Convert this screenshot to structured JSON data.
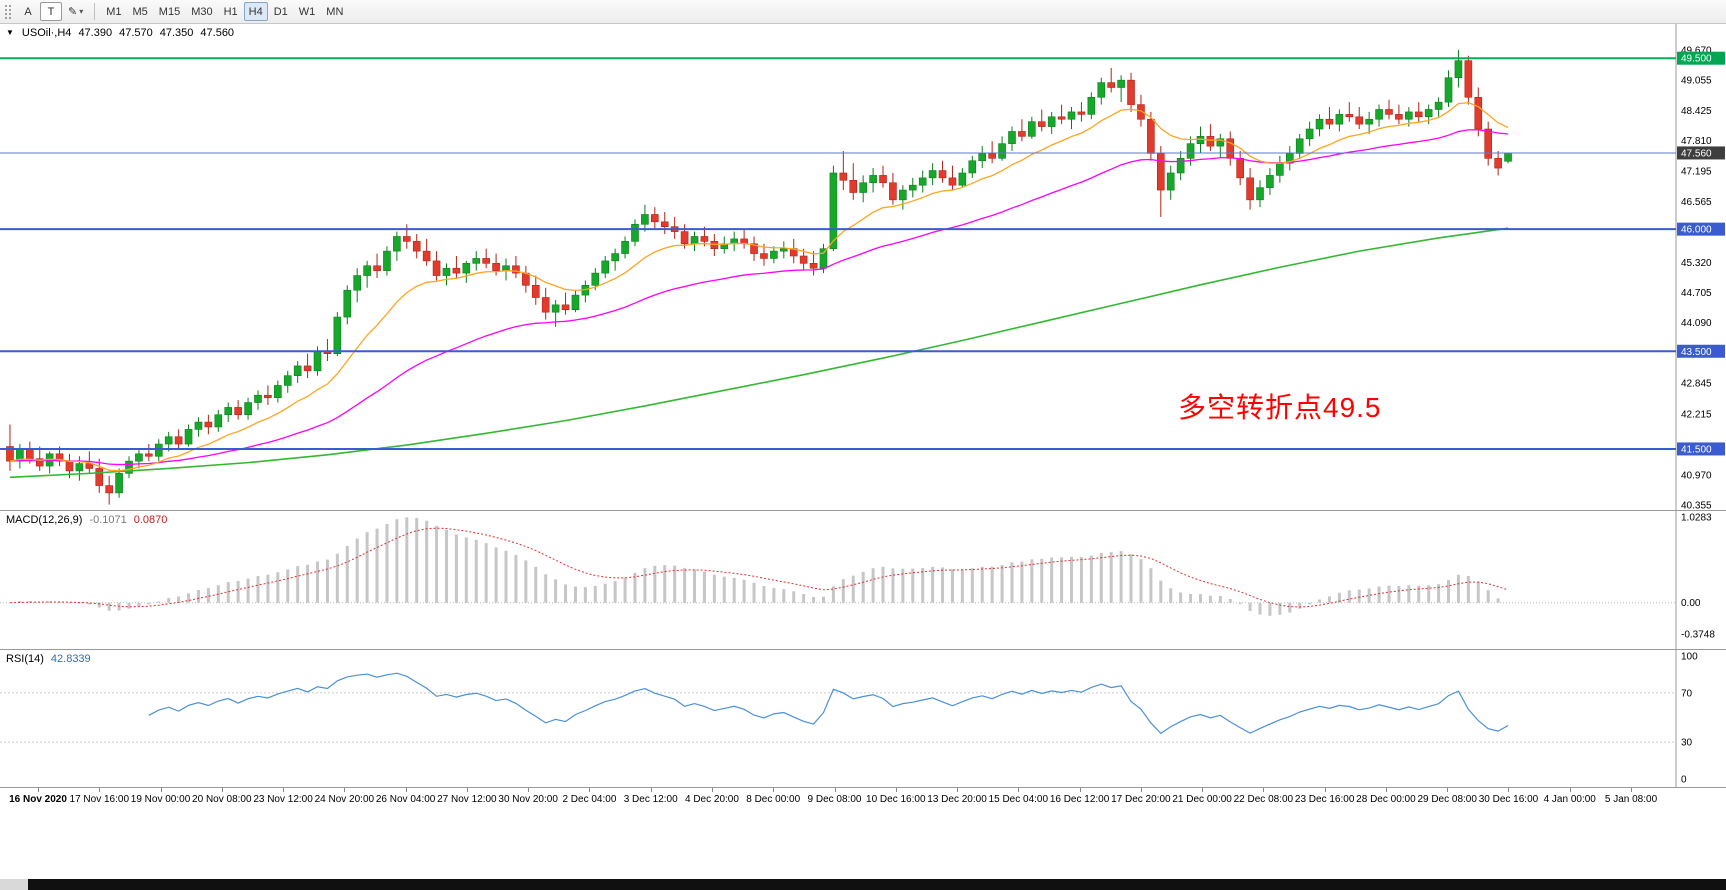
{
  "toolbar": {
    "left_tools": [
      {
        "name": "drag-handle",
        "glyph": ""
      },
      {
        "name": "annotate",
        "label": "A"
      },
      {
        "name": "text",
        "label": "T"
      },
      {
        "name": "draw",
        "glyph": "✎",
        "caret": "▾"
      }
    ],
    "timeframes": [
      "M1",
      "M5",
      "M15",
      "M30",
      "H1",
      "H4",
      "D1",
      "W1",
      "MN"
    ],
    "active_timeframe": "H4"
  },
  "main_header": {
    "expander": "▼",
    "symbol": "USOil·,H4",
    "open": "47.390",
    "high": "47.570",
    "low": "47.350",
    "close": "47.560"
  },
  "annotation": {
    "text": "多空转折点49.5",
    "color": "#ff0000"
  },
  "colors": {
    "up": "#17a82b",
    "up_stroke": "#0c7d1d",
    "down": "#e23b2e",
    "down_stroke": "#b02317",
    "panel_border": "#9a9a9a",
    "axis_text": "#000000"
  },
  "chart_data": {
    "type": "candlestick",
    "symbol": "USOil",
    "timeframe": "H4",
    "price_range": [
      40.25,
      50.2
    ],
    "candles": [
      [
        41.55,
        42,
        41.05,
        41.25
      ],
      [
        41.25,
        41.6,
        41.1,
        41.5
      ],
      [
        41.5,
        41.65,
        41.2,
        41.3
      ],
      [
        41.3,
        41.55,
        41.05,
        41.15
      ],
      [
        41.15,
        41.45,
        41,
        41.4
      ],
      [
        41.4,
        41.55,
        41.15,
        41.25
      ],
      [
        41.25,
        41.4,
        40.9,
        41.05
      ],
      [
        41.05,
        41.35,
        40.85,
        41.2
      ],
      [
        41.2,
        41.45,
        41,
        41.1
      ],
      [
        41.1,
        41.3,
        40.6,
        40.75
      ],
      [
        40.75,
        40.95,
        40.36,
        40.6
      ],
      [
        40.6,
        41.1,
        40.5,
        41
      ],
      [
        41,
        41.35,
        40.9,
        41.25
      ],
      [
        41.25,
        41.5,
        41.1,
        41.4
      ],
      [
        41.4,
        41.6,
        41.25,
        41.35
      ],
      [
        41.35,
        41.7,
        41.25,
        41.6
      ],
      [
        41.6,
        41.85,
        41.45,
        41.75
      ],
      [
        41.75,
        41.9,
        41.5,
        41.6
      ],
      [
        41.6,
        42,
        41.55,
        41.9
      ],
      [
        41.9,
        42.15,
        41.75,
        42.05
      ],
      [
        42.05,
        42.2,
        41.8,
        41.95
      ],
      [
        41.95,
        42.3,
        41.85,
        42.2
      ],
      [
        42.2,
        42.45,
        42.05,
        42.35
      ],
      [
        42.35,
        42.5,
        42.1,
        42.2
      ],
      [
        42.2,
        42.55,
        42.1,
        42.45
      ],
      [
        42.45,
        42.7,
        42.3,
        42.6
      ],
      [
        42.6,
        42.8,
        42.4,
        42.55
      ],
      [
        42.55,
        42.9,
        42.45,
        42.8
      ],
      [
        42.8,
        43.1,
        42.65,
        43
      ],
      [
        43,
        43.3,
        42.85,
        43.2
      ],
      [
        43.2,
        43.45,
        42.95,
        43.1
      ],
      [
        43.1,
        43.6,
        43,
        43.5
      ],
      [
        43.5,
        43.75,
        43.3,
        43.45
      ],
      [
        43.45,
        44.3,
        43.4,
        44.2
      ],
      [
        44.2,
        44.85,
        44.05,
        44.75
      ],
      [
        44.75,
        45.2,
        44.5,
        45.05
      ],
      [
        45.05,
        45.35,
        44.8,
        45.25
      ],
      [
        45.25,
        45.5,
        45,
        45.15
      ],
      [
        45.15,
        45.65,
        45.05,
        45.55
      ],
      [
        45.55,
        45.95,
        45.35,
        45.85
      ],
      [
        45.85,
        46.1,
        45.6,
        45.75
      ],
      [
        45.75,
        45.9,
        45.4,
        45.55
      ],
      [
        45.55,
        45.8,
        45.25,
        45.35
      ],
      [
        45.35,
        45.55,
        44.95,
        45.05
      ],
      [
        45.05,
        45.3,
        44.85,
        45.2
      ],
      [
        45.2,
        45.45,
        45,
        45.1
      ],
      [
        45.1,
        45.35,
        44.9,
        45.3
      ],
      [
        45.3,
        45.55,
        45.15,
        45.4
      ],
      [
        45.4,
        45.6,
        45.2,
        45.3
      ],
      [
        45.3,
        45.5,
        45.05,
        45.15
      ],
      [
        45.15,
        45.4,
        44.95,
        45.25
      ],
      [
        45.25,
        45.45,
        45,
        45.1
      ],
      [
        45.1,
        45.25,
        44.7,
        44.85
      ],
      [
        44.85,
        45.05,
        44.45,
        44.6
      ],
      [
        44.6,
        44.8,
        44.15,
        44.3
      ],
      [
        44.3,
        44.55,
        44,
        44.45
      ],
      [
        44.45,
        44.7,
        44.25,
        44.35
      ],
      [
        44.35,
        44.75,
        44.3,
        44.65
      ],
      [
        44.65,
        44.95,
        44.5,
        44.85
      ],
      [
        44.85,
        45.2,
        44.75,
        45.1
      ],
      [
        45.1,
        45.45,
        45,
        45.35
      ],
      [
        45.35,
        45.6,
        45.15,
        45.5
      ],
      [
        45.5,
        45.85,
        45.4,
        45.75
      ],
      [
        45.75,
        46.2,
        45.65,
        46.1
      ],
      [
        46.1,
        46.5,
        45.95,
        46.3
      ],
      [
        46.3,
        46.45,
        46,
        46.15
      ],
      [
        46.15,
        46.35,
        45.9,
        46.05
      ],
      [
        46.05,
        46.25,
        45.8,
        45.95
      ],
      [
        45.95,
        46.1,
        45.6,
        45.7
      ],
      [
        45.7,
        45.95,
        45.55,
        45.85
      ],
      [
        45.85,
        46.05,
        45.65,
        45.75
      ],
      [
        45.75,
        45.9,
        45.45,
        45.6
      ],
      [
        45.6,
        45.85,
        45.5,
        45.7
      ],
      [
        45.7,
        45.95,
        45.55,
        45.8
      ],
      [
        45.8,
        46,
        45.6,
        45.7
      ],
      [
        45.7,
        45.85,
        45.35,
        45.5
      ],
      [
        45.5,
        45.7,
        45.25,
        45.4
      ],
      [
        45.4,
        45.65,
        45.3,
        45.55
      ],
      [
        45.55,
        45.75,
        45.4,
        45.6
      ],
      [
        45.6,
        45.8,
        45.3,
        45.45
      ],
      [
        45.45,
        45.6,
        45.15,
        45.3
      ],
      [
        45.3,
        45.55,
        45.05,
        45.2
      ],
      [
        45.2,
        45.7,
        45.1,
        45.6
      ],
      [
        45.6,
        47.3,
        45.55,
        47.15
      ],
      [
        47.15,
        47.6,
        46.8,
        47
      ],
      [
        47,
        47.35,
        46.6,
        46.75
      ],
      [
        46.75,
        47.1,
        46.55,
        46.95
      ],
      [
        46.95,
        47.25,
        46.75,
        47.1
      ],
      [
        47.1,
        47.3,
        46.85,
        46.95
      ],
      [
        46.95,
        47.15,
        46.5,
        46.6
      ],
      [
        46.6,
        46.9,
        46.4,
        46.8
      ],
      [
        46.8,
        47.05,
        46.65,
        46.9
      ],
      [
        46.9,
        47.2,
        46.75,
        47.05
      ],
      [
        47.05,
        47.35,
        46.9,
        47.2
      ],
      [
        47.2,
        47.4,
        46.95,
        47.05
      ],
      [
        47.05,
        47.3,
        46.8,
        46.9
      ],
      [
        46.9,
        47.25,
        46.85,
        47.15
      ],
      [
        47.15,
        47.5,
        47.05,
        47.4
      ],
      [
        47.4,
        47.7,
        47.25,
        47.55
      ],
      [
        47.55,
        47.8,
        47.35,
        47.45
      ],
      [
        47.45,
        47.9,
        47.4,
        47.75
      ],
      [
        47.75,
        48.1,
        47.6,
        48
      ],
      [
        48,
        48.25,
        47.8,
        47.9
      ],
      [
        47.9,
        48.3,
        47.85,
        48.2
      ],
      [
        48.2,
        48.45,
        48,
        48.1
      ],
      [
        48.1,
        48.4,
        47.95,
        48.3
      ],
      [
        48.3,
        48.55,
        48.15,
        48.25
      ],
      [
        48.25,
        48.5,
        48.05,
        48.4
      ],
      [
        48.4,
        48.6,
        48.2,
        48.35
      ],
      [
        48.35,
        48.8,
        48.25,
        48.7
      ],
      [
        48.7,
        49.1,
        48.55,
        49
      ],
      [
        49,
        49.3,
        48.8,
        48.9
      ],
      [
        48.9,
        49.15,
        48.6,
        49.05
      ],
      [
        49.05,
        49.2,
        48.4,
        48.55
      ],
      [
        48.55,
        48.75,
        48.1,
        48.25
      ],
      [
        48.25,
        48.4,
        47.4,
        47.55
      ],
      [
        47.55,
        47.7,
        46.25,
        46.8
      ],
      [
        46.8,
        47.3,
        46.6,
        47.15
      ],
      [
        47.15,
        47.6,
        47,
        47.45
      ],
      [
        47.45,
        47.9,
        47.3,
        47.75
      ],
      [
        47.75,
        48.1,
        47.55,
        47.9
      ],
      [
        47.9,
        48.15,
        47.6,
        47.7
      ],
      [
        47.7,
        47.95,
        47.45,
        47.85
      ],
      [
        47.85,
        48,
        47.3,
        47.45
      ],
      [
        47.45,
        47.6,
        46.9,
        47.05
      ],
      [
        47.05,
        47.25,
        46.4,
        46.6
      ],
      [
        46.6,
        47,
        46.45,
        46.85
      ],
      [
        46.85,
        47.25,
        46.7,
        47.1
      ],
      [
        47.1,
        47.5,
        46.95,
        47.35
      ],
      [
        47.35,
        47.7,
        47.2,
        47.55
      ],
      [
        47.55,
        47.95,
        47.45,
        47.85
      ],
      [
        47.85,
        48.2,
        47.7,
        48.05
      ],
      [
        48.05,
        48.35,
        47.9,
        48.25
      ],
      [
        48.25,
        48.5,
        48.05,
        48.15
      ],
      [
        48.15,
        48.45,
        48,
        48.35
      ],
      [
        48.35,
        48.6,
        48.2,
        48.3
      ],
      [
        48.3,
        48.5,
        48.05,
        48.15
      ],
      [
        48.15,
        48.4,
        47.95,
        48.25
      ],
      [
        48.25,
        48.55,
        48.1,
        48.45
      ],
      [
        48.45,
        48.65,
        48.25,
        48.35
      ],
      [
        48.35,
        48.55,
        48.15,
        48.25
      ],
      [
        48.25,
        48.5,
        48.1,
        48.4
      ],
      [
        48.4,
        48.6,
        48.2,
        48.3
      ],
      [
        48.3,
        48.55,
        48.15,
        48.45
      ],
      [
        48.45,
        48.7,
        48.3,
        48.6
      ],
      [
        48.6,
        49.25,
        48.5,
        49.1
      ],
      [
        49.1,
        49.67,
        48.9,
        49.45
      ],
      [
        49.45,
        49.55,
        48.55,
        48.7
      ],
      [
        48.7,
        48.9,
        47.9,
        48.05
      ],
      [
        48.05,
        48.2,
        47.3,
        47.45
      ],
      [
        47.45,
        47.6,
        47.1,
        47.25
      ],
      [
        47.39,
        47.57,
        47.35,
        47.56
      ]
    ],
    "overlays": {
      "ma_fast": {
        "name": "fast-ma",
        "type": "ema",
        "period": 12,
        "color": "#ffa520"
      },
      "ma_mid": {
        "name": "mid-ma",
        "type": "ema",
        "period": 40,
        "color": "#ff00ff"
      },
      "ma_slow": {
        "name": "slow-ma",
        "color": "#33b833",
        "points": [
          [
            0,
            40.92
          ],
          [
            8,
            41.0
          ],
          [
            16,
            41.1
          ],
          [
            24,
            41.22
          ],
          [
            32,
            41.38
          ],
          [
            40,
            41.58
          ],
          [
            48,
            41.82
          ],
          [
            56,
            42.08
          ],
          [
            64,
            42.38
          ],
          [
            72,
            42.7
          ],
          [
            80,
            43.02
          ],
          [
            88,
            43.36
          ],
          [
            96,
            43.72
          ],
          [
            104,
            44.1
          ],
          [
            112,
            44.48
          ],
          [
            120,
            44.86
          ],
          [
            128,
            45.22
          ],
          [
            136,
            45.55
          ],
          [
            144,
            45.82
          ],
          [
            151,
            46.02
          ]
        ]
      }
    },
    "hlines": [
      {
        "price": 49.5,
        "label": "49.500",
        "color": "#00b058",
        "badge_bg": "#00a651",
        "width": 2
      },
      {
        "price": 47.56,
        "label": "47.560",
        "color": "#5b79c9",
        "badge_bg": "#3e3e3e",
        "width": 1
      },
      {
        "price": 46.0,
        "label": "46.000",
        "color": "#3b5bd0",
        "badge_bg": "#3b5bd0",
        "width": 2
      },
      {
        "price": 43.5,
        "label": "43.500",
        "color": "#3b5bd0",
        "badge_bg": "#3b5bd0",
        "width": 2
      },
      {
        "price": 41.5,
        "label": "41.500",
        "color": "#3b5bd0",
        "badge_bg": "#3b5bd0",
        "width": 2
      }
    ],
    "price_axis_labels": [
      "49.670",
      "49.055",
      "48.425",
      "47.810",
      "47.195",
      "46.565",
      "45.320",
      "44.705",
      "44.090",
      "42.845",
      "42.215",
      "40.970",
      "40.355"
    ],
    "macd": {
      "label": "MACD(12,26,9)",
      "value_main": "-0.1071",
      "value_signal": "0.0870",
      "params": [
        12,
        26,
        9
      ],
      "range": [
        -0.3748,
        1.0283
      ],
      "axis_labels": [
        "1.0283",
        "0.00",
        "-0.3748"
      ],
      "hist_color": "#c6c6c6",
      "signal_color": "#e03030"
    },
    "rsi": {
      "label": "RSI(14)",
      "value": "42.8339",
      "period": 14,
      "range": [
        0,
        100
      ],
      "levels": [
        70,
        30
      ],
      "axis_labels": [
        "100",
        "70",
        "30",
        "0"
      ],
      "line_color": "#4a90d9"
    },
    "time_labels": [
      "16 Nov 2020",
      "17 Nov 16:00",
      "19 Nov 00:00",
      "20 Nov 08:00",
      "23 Nov 12:00",
      "24 Nov 20:00",
      "26 Nov 04:00",
      "27 Nov 12:00",
      "30 Nov 20:00",
      "2 Dec 04:00",
      "3 Dec 12:00",
      "4 Dec 20:00",
      "8 Dec 00:00",
      "9 Dec 08:00",
      "10 Dec 16:00",
      "13 Dec 20:00",
      "15 Dec 04:00",
      "16 Dec 12:00",
      "17 Dec 20:00",
      "21 Dec 00:00",
      "22 Dec 08:00",
      "23 Dec 16:00",
      "28 Dec 00:00",
      "29 Dec 08:00",
      "30 Dec 16:00",
      "4 Jan 00:00",
      "5 Jan 08:00"
    ]
  }
}
